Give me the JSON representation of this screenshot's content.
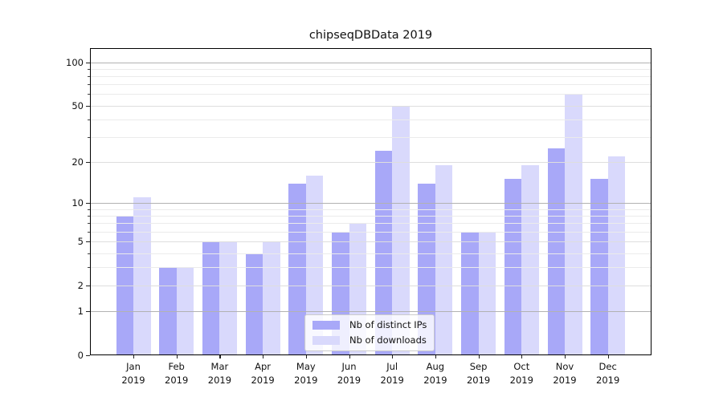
{
  "title": "chipseqDBData 2019",
  "chart_data": {
    "type": "bar",
    "title": "chipseqDBData 2019",
    "categories": [
      "Jan",
      "Feb",
      "Mar",
      "Apr",
      "May",
      "Jun",
      "Jul",
      "Aug",
      "Sep",
      "Oct",
      "Nov",
      "Dec"
    ],
    "x_tick_year": "2019",
    "series": [
      {
        "name": "Nb of distinct IPs",
        "color": "#a8a8f8",
        "values": [
          8,
          3,
          5,
          4,
          14,
          6,
          24,
          14,
          6,
          15,
          25,
          15
        ]
      },
      {
        "name": "Nb of downloads",
        "color": "#d9d9fc",
        "values": [
          11,
          3,
          5,
          5,
          16,
          7,
          50,
          19,
          6,
          19,
          60,
          22
        ]
      }
    ],
    "xlabel": "",
    "ylabel": "",
    "yscale": "log1p",
    "ylim": [
      0,
      125
    ],
    "yticks": [
      0,
      1,
      2,
      5,
      10,
      20,
      50,
      100
    ],
    "decade_gridlines": [
      1,
      10,
      100
    ],
    "minor_gridlines": [
      3,
      4,
      6,
      7,
      8,
      9,
      30,
      40,
      60,
      70,
      80,
      90
    ],
    "grid": true,
    "legend_position": "lower center"
  },
  "colors": {
    "grid_decade": "#b2b2b2",
    "grid_major": "#dedede",
    "grid_minor": "#ebebeb",
    "spine": "#000000",
    "legend_border": "#cccccc"
  }
}
